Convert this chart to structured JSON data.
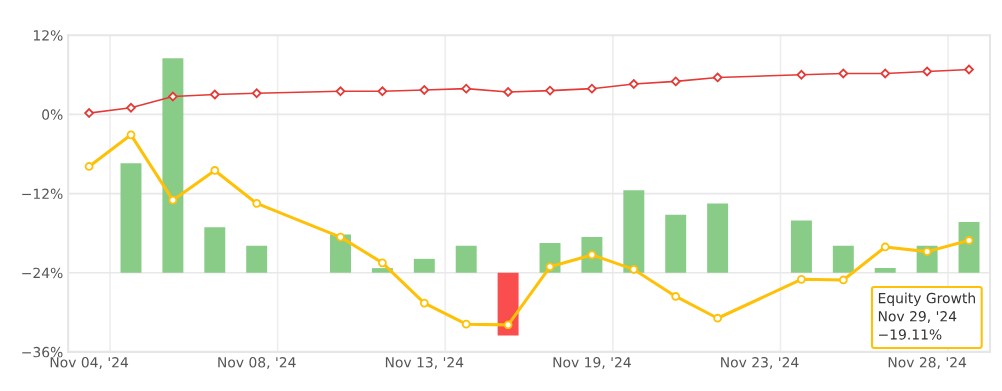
{
  "chart_data": {
    "type": "bar",
    "categories": [
      "Nov 04, '24",
      null,
      null,
      null,
      "Nov 08, '24",
      null,
      null,
      null,
      "Nov 13, '24",
      null,
      null,
      null,
      "Nov 19, '24",
      null,
      null,
      null,
      "Nov 23, '24",
      null,
      null,
      null,
      "Nov 28, '24",
      null
    ],
    "series": [
      {
        "base": [
          null,
          -24,
          -24,
          -24,
          -24,
          null,
          -24,
          -24,
          -24,
          -24,
          -24,
          -24,
          -24,
          -24,
          -24,
          -24,
          null,
          -24,
          -24,
          -24,
          -24,
          -24
        ],
        "colors": [
          "#88cc88",
          "#88cc88",
          "#88cc88",
          "#88cc88",
          "#88cc88",
          "#88cc88",
          "#88cc88",
          "#88cc88",
          "#88cc88",
          "#88cc88",
          "#fa4d4d",
          "#88cc88",
          "#88cc88",
          "#88cc88",
          "#88cc88",
          "#88cc88",
          "#88cc88",
          "#88cc88",
          "#88cc88",
          "#88cc88",
          "#88cc88",
          "#88cc88"
        ],
        "values": [
          null,
          16.6,
          32.5,
          6.9,
          4.1,
          null,
          5.8,
          0.7,
          2.1,
          4.1,
          -9.5,
          4.5,
          5.4,
          12.5,
          8.8,
          10.5,
          null,
          7.9,
          4.1,
          0.7,
          4.1,
          7.7
        ]
      },
      {
        "type": "line",
        "color": "#e53935",
        "marker": "diamond",
        "values": [
          0.2,
          1.0,
          2.7,
          3.0,
          3.2,
          null,
          3.5,
          3.5,
          3.7,
          3.9,
          3.4,
          3.6,
          3.9,
          4.6,
          5.0,
          5.6,
          null,
          6.0,
          6.2,
          6.2,
          6.5,
          6.8
        ]
      },
      {
        "type": "line",
        "color": "#ffc107",
        "marker": "circle",
        "values": [
          -7.9,
          -3.1,
          -13.0,
          -8.5,
          -13.5,
          null,
          -18.6,
          -22.5,
          -28.6,
          -31.8,
          -31.9,
          -23.1,
          -21.3,
          -23.5,
          -27.6,
          -30.9,
          null,
          -25.0,
          -25.1,
          -20.1,
          -20.8,
          -19.11
        ]
      }
    ],
    "ylim": [
      -36,
      12
    ],
    "yticks": [
      {
        "value": 12,
        "label": "12%"
      },
      {
        "value": 0,
        "label": "0%"
      },
      {
        "value": -12,
        "label": "−12%"
      },
      {
        "value": -24,
        "label": "−24%"
      },
      {
        "value": -36,
        "label": "−36%"
      }
    ],
    "grid": true,
    "legend": false,
    "annotations": [
      "Equity Growth\nNov 29, '24\n−19.11%"
    ]
  }
}
